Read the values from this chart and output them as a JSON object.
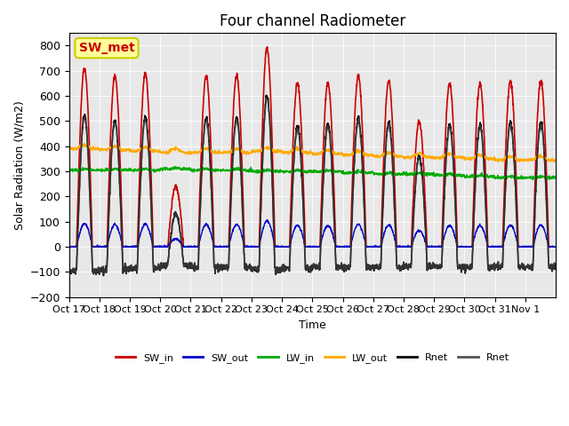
{
  "title": "Four channel Radiometer",
  "xlabel": "Time",
  "ylabel": "Solar Radiation (W/m2)",
  "annotation": "SW_met",
  "ylim": [
    -200,
    850
  ],
  "yticks": [
    -200,
    -100,
    0,
    100,
    200,
    300,
    400,
    500,
    600,
    700,
    800
  ],
  "xtick_labels": [
    "Oct 17",
    "Oct 18",
    "Oct 19",
    "Oct 20",
    "Oct 21",
    "Oct 22",
    "Oct 23",
    "Oct 24",
    "Oct 25",
    "Oct 26",
    "Oct 27",
    "Oct 28",
    "Oct 29",
    "Oct 30",
    "Oct 31",
    "Nov 1"
  ],
  "num_days": 16,
  "lines": {
    "SW_in": {
      "color": "#cc0000",
      "lw": 1.2
    },
    "SW_out": {
      "color": "#0000cc",
      "lw": 1.0
    },
    "LW_in": {
      "color": "#00aa00",
      "lw": 1.0
    },
    "LW_out": {
      "color": "#ffaa00",
      "lw": 1.0
    },
    "Rnet1": {
      "color": "#000000",
      "lw": 1.2
    },
    "Rnet2": {
      "color": "#555555",
      "lw": 1.2
    }
  },
  "background_color": "#e8e8e8",
  "legend_entries": [
    "SW_in",
    "SW_out",
    "LW_in",
    "LW_out",
    "Rnet",
    "Rnet"
  ],
  "legend_colors": [
    "#cc0000",
    "#0000cc",
    "#00aa00",
    "#ffaa00",
    "#000000",
    "#555555"
  ]
}
